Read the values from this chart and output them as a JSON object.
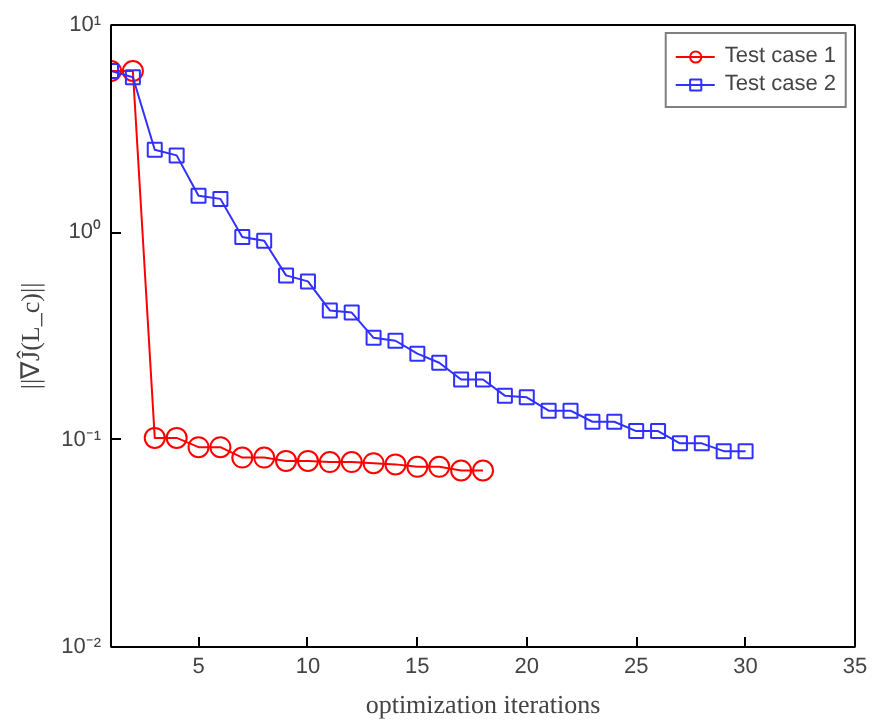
{
  "chart_data": {
    "type": "line",
    "xlabel": "optimization iterations",
    "ylabel": "||∇Ĵ(L_c)||",
    "log": "y",
    "xlim": [
      1,
      35
    ],
    "xticks": [
      5,
      10,
      15,
      20,
      25,
      30,
      35
    ],
    "ylim": [
      0.01,
      10
    ],
    "yticks": [
      {
        "value": 0.01,
        "label": "10⁻²"
      },
      {
        "value": 0.1,
        "label": "10⁻¹"
      },
      {
        "value": 1,
        "label": "10⁰"
      },
      {
        "value": 10,
        "label": "10¹"
      }
    ],
    "grid": false,
    "legend": "top right",
    "line_style": "solid",
    "series": [
      {
        "name": "Test case 1",
        "color": "#ff0000",
        "marker": "circle",
        "x": [
          1,
          2,
          3,
          4,
          5,
          6,
          7,
          8,
          9,
          10,
          11,
          12,
          13,
          14,
          15,
          16,
          17,
          18
        ],
        "values": [
          6.0,
          6.0,
          0.102,
          0.102,
          0.092,
          0.092,
          0.082,
          0.082,
          0.079,
          0.079,
          0.078,
          0.078,
          0.077,
          0.076,
          0.074,
          0.074,
          0.071,
          0.071
        ]
      },
      {
        "name": "Test case 2",
        "color": "#3030ff",
        "marker": "square",
        "x": [
          1,
          2,
          3,
          4,
          5,
          6,
          7,
          8,
          9,
          10,
          11,
          12,
          13,
          14,
          15,
          16,
          17,
          18,
          19,
          20,
          21,
          22,
          23,
          24,
          25,
          26,
          27,
          28,
          29,
          30
        ],
        "values": [
          6.0,
          5.6,
          2.5,
          2.35,
          1.5,
          1.45,
          0.95,
          0.91,
          0.62,
          0.58,
          0.42,
          0.41,
          0.31,
          0.3,
          0.26,
          0.235,
          0.195,
          0.195,
          0.163,
          0.16,
          0.138,
          0.138,
          0.122,
          0.122,
          0.11,
          0.11,
          0.096,
          0.096,
          0.088,
          0.088
        ]
      }
    ]
  }
}
